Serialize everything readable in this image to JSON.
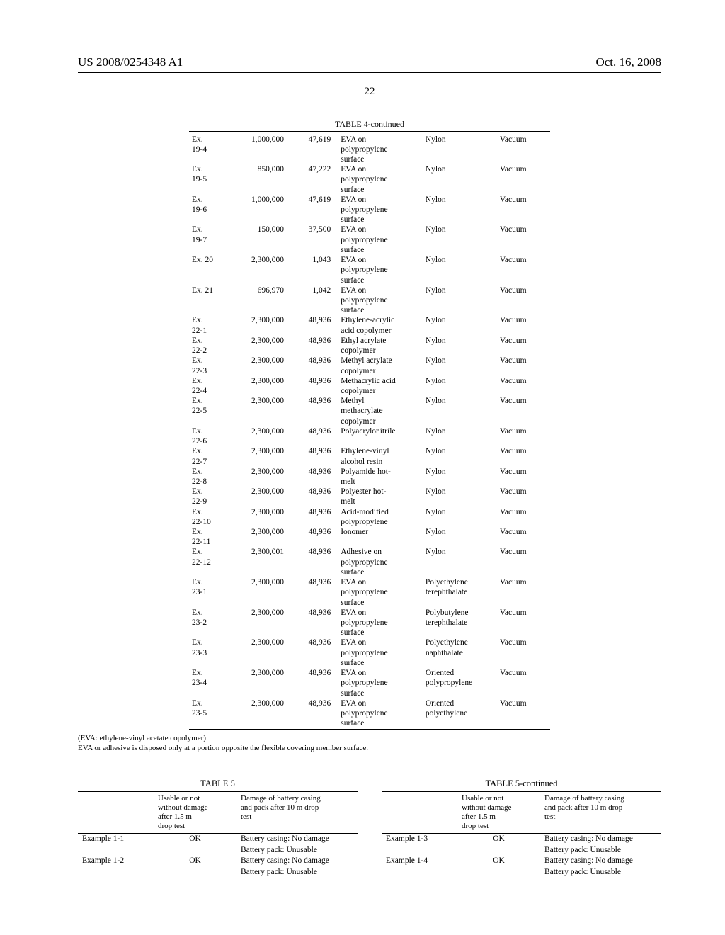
{
  "header": {
    "left": "US 2008/0254348 A1",
    "right": "Oct. 16, 2008"
  },
  "page_number": "22",
  "table4": {
    "title": "TABLE 4-continued",
    "rows": [
      {
        "ex": "Ex. 19-4",
        "ex_lines": [
          "Ex.",
          "19-4"
        ],
        "v1": "1,000,000",
        "v2": "47,619",
        "mat1": [
          "EVA on",
          "polypropylene",
          "surface"
        ],
        "mat2": [
          "Nylon"
        ],
        "mat3": "Vacuum"
      },
      {
        "ex_lines": [
          "Ex.",
          "19-5"
        ],
        "v1": "850,000",
        "v2": "47,222",
        "mat1": [
          "EVA on",
          "polypropylene",
          "surface"
        ],
        "mat2": [
          "Nylon"
        ],
        "mat3": "Vacuum"
      },
      {
        "ex_lines": [
          "Ex.",
          "19-6"
        ],
        "v1": "1,000,000",
        "v2": "47,619",
        "mat1": [
          "EVA on",
          "polypropylene",
          "surface"
        ],
        "mat2": [
          "Nylon"
        ],
        "mat3": "Vacuum"
      },
      {
        "ex_lines": [
          "Ex.",
          "19-7"
        ],
        "v1": "150,000",
        "v2": "37,500",
        "mat1": [
          "EVA on",
          "polypropylene",
          "surface"
        ],
        "mat2": [
          "Nylon"
        ],
        "mat3": "Vacuum"
      },
      {
        "ex_lines": [
          "Ex. 20"
        ],
        "v1": "2,300,000",
        "v2": "1,043",
        "mat1": [
          "EVA on",
          "polypropylene",
          "surface"
        ],
        "mat2": [
          "Nylon"
        ],
        "mat3": "Vacuum"
      },
      {
        "ex_lines": [
          "Ex. 21"
        ],
        "v1": "696,970",
        "v2": "1,042",
        "mat1": [
          "EVA on",
          "polypropylene",
          "surface"
        ],
        "mat2": [
          "Nylon"
        ],
        "mat3": "Vacuum"
      },
      {
        "ex_lines": [
          "Ex.",
          "22-1"
        ],
        "v1": "2,300,000",
        "v2": "48,936",
        "mat1": [
          "Ethylene-acrylic",
          "acid copolymer"
        ],
        "mat2": [
          "Nylon"
        ],
        "mat3": "Vacuum"
      },
      {
        "ex_lines": [
          "Ex.",
          "22-2"
        ],
        "v1": "2,300,000",
        "v2": "48,936",
        "mat1": [
          "Ethyl acrylate",
          "copolymer"
        ],
        "mat2": [
          "Nylon"
        ],
        "mat3": "Vacuum"
      },
      {
        "ex_lines": [
          "Ex.",
          "22-3"
        ],
        "v1": "2,300,000",
        "v2": "48,936",
        "mat1": [
          "Methyl acrylate",
          "copolymer"
        ],
        "mat2": [
          "Nylon"
        ],
        "mat3": "Vacuum"
      },
      {
        "ex_lines": [
          "Ex.",
          "22-4"
        ],
        "v1": "2,300,000",
        "v2": "48,936",
        "mat1": [
          "Methacrylic acid",
          "copolymer"
        ],
        "mat2": [
          "Nylon"
        ],
        "mat3": "Vacuum"
      },
      {
        "ex_lines": [
          "Ex.",
          "22-5"
        ],
        "v1": "2,300,000",
        "v2": "48,936",
        "mat1": [
          "Methyl",
          "methacrylate",
          "copolymer"
        ],
        "mat2": [
          "Nylon"
        ],
        "mat3": "Vacuum"
      },
      {
        "ex_lines": [
          "Ex.",
          "22-6"
        ],
        "v1": "2,300,000",
        "v2": "48,936",
        "mat1": [
          "Polyacrylonitrile"
        ],
        "mat2": [
          "Nylon"
        ],
        "mat3": "Vacuum"
      },
      {
        "ex_lines": [
          "Ex.",
          "22-7"
        ],
        "v1": "2,300,000",
        "v2": "48,936",
        "mat1": [
          "Ethylene-vinyl",
          "alcohol resin"
        ],
        "mat2": [
          "Nylon"
        ],
        "mat3": "Vacuum"
      },
      {
        "ex_lines": [
          "Ex.",
          "22-8"
        ],
        "v1": "2,300,000",
        "v2": "48,936",
        "mat1": [
          "Polyamide hot-",
          "melt"
        ],
        "mat2": [
          "Nylon"
        ],
        "mat3": "Vacuum"
      },
      {
        "ex_lines": [
          "Ex.",
          "22-9"
        ],
        "v1": "2,300,000",
        "v2": "48,936",
        "mat1": [
          "Polyester hot-",
          "melt"
        ],
        "mat2": [
          "Nylon"
        ],
        "mat3": "Vacuum"
      },
      {
        "ex_lines": [
          "Ex.",
          "22-10"
        ],
        "v1": "2,300,000",
        "v2": "48,936",
        "mat1": [
          "Acid-modified",
          "polypropylene"
        ],
        "mat2": [
          "Nylon"
        ],
        "mat3": "Vacuum"
      },
      {
        "ex_lines": [
          "Ex.",
          "22-11"
        ],
        "v1": "2,300,000",
        "v2": "48,936",
        "mat1": [
          "Ionomer"
        ],
        "mat2": [
          "Nylon"
        ],
        "mat3": "Vacuum"
      },
      {
        "ex_lines": [
          "Ex.",
          "22-12"
        ],
        "v1": "2,300,001",
        "v2": "48,936",
        "mat1": [
          "Adhesive on",
          "polypropylene",
          "surface"
        ],
        "mat2": [
          "Nylon"
        ],
        "mat3": "Vacuum"
      },
      {
        "ex_lines": [
          "Ex.",
          "23-1"
        ],
        "v1": "2,300,000",
        "v2": "48,936",
        "mat1": [
          "EVA on",
          "polypropylene",
          "surface"
        ],
        "mat2": [
          "Polyethylene",
          "terephthalate"
        ],
        "mat3": "Vacuum"
      },
      {
        "ex_lines": [
          "Ex.",
          "23-2"
        ],
        "v1": "2,300,000",
        "v2": "48,936",
        "mat1": [
          "EVA on",
          "polypropylene",
          "surface"
        ],
        "mat2": [
          "Polybutylene",
          "terephthalate"
        ],
        "mat3": "Vacuum"
      },
      {
        "ex_lines": [
          "Ex.",
          "23-3"
        ],
        "v1": "2,300,000",
        "v2": "48,936",
        "mat1": [
          "EVA on",
          "polypropylene",
          "surface"
        ],
        "mat2": [
          "Polyethylene",
          "naphthalate"
        ],
        "mat3": "Vacuum"
      },
      {
        "ex_lines": [
          "Ex.",
          "23-4"
        ],
        "v1": "2,300,000",
        "v2": "48,936",
        "mat1": [
          "EVA on",
          "polypropylene",
          "surface"
        ],
        "mat2": [
          "Oriented",
          "polypropylene"
        ],
        "mat3": "Vacuum"
      },
      {
        "ex_lines": [
          "Ex.",
          "23-5"
        ],
        "v1": "2,300,000",
        "v2": "48,936",
        "mat1": [
          "EVA on",
          "polypropylene",
          "surface"
        ],
        "mat2": [
          "Oriented",
          "polyethylene"
        ],
        "mat3": "Vacuum"
      }
    ],
    "footnote": [
      "(EVA: ethylene-vinyl acetate copolymer)",
      "EVA or adhesive is disposed only at a portion opposite the flexible covering member surface."
    ]
  },
  "table5": {
    "title_left": "TABLE 5",
    "title_right": "TABLE 5-continued",
    "head_c2": [
      "Usable or not",
      "without damage",
      "after 1.5 m",
      "drop test"
    ],
    "head_c3": [
      "Damage of battery casing",
      "and pack after 10 m drop",
      "test"
    ],
    "left_rows": [
      {
        "c1": "Example 1-1",
        "c2": "OK",
        "c3": [
          "Battery casing: No damage",
          "Battery pack: Unusable"
        ]
      },
      {
        "c1": "Example 1-2",
        "c2": "OK",
        "c3": [
          "Battery casing: No damage",
          "Battery pack: Unusable"
        ]
      }
    ],
    "right_rows": [
      {
        "c1": "Example 1-3",
        "c2": "OK",
        "c3": [
          "Battery casing: No damage",
          "Battery pack: Unusable"
        ]
      },
      {
        "c1": "Example 1-4",
        "c2": "OK",
        "c3": [
          "Battery casing: No damage",
          "Battery pack: Unusable"
        ]
      }
    ]
  }
}
